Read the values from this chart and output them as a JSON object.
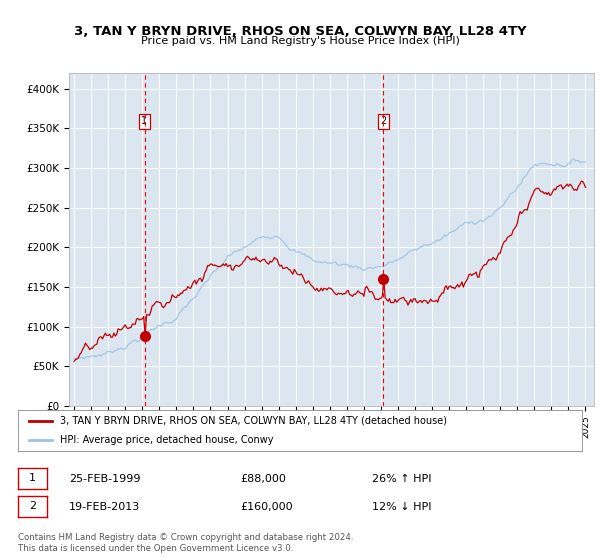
{
  "title": "3, TAN Y BRYN DRIVE, RHOS ON SEA, COLWYN BAY, LL28 4TY",
  "subtitle": "Price paid vs. HM Land Registry's House Price Index (HPI)",
  "ylabel_ticks": [
    "£0",
    "£50K",
    "£100K",
    "£150K",
    "£200K",
    "£250K",
    "£300K",
    "£350K",
    "£400K"
  ],
  "ytick_values": [
    0,
    50000,
    100000,
    150000,
    200000,
    250000,
    300000,
    350000,
    400000
  ],
  "ylim": [
    0,
    420000
  ],
  "sale1_date": 1999.13,
  "sale1_price": 88000,
  "sale2_date": 2013.13,
  "sale2_price": 160000,
  "legend_line1": "3, TAN Y BRYN DRIVE, RHOS ON SEA, COLWYN BAY, LL28 4TY (detached house)",
  "legend_line2": "HPI: Average price, detached house, Conwy",
  "annotation1_date": "25-FEB-1999",
  "annotation1_price": "£88,000",
  "annotation1_hpi": "26% ↑ HPI",
  "annotation2_date": "19-FEB-2013",
  "annotation2_price": "£160,000",
  "annotation2_hpi": "12% ↓ HPI",
  "footer": "Contains HM Land Registry data © Crown copyright and database right 2024.\nThis data is licensed under the Open Government Licence v3.0.",
  "bg_color": "#dce6f1",
  "red_line_color": "#c00000",
  "blue_line_color": "#9dc3e6",
  "vline_color": "#ff0000"
}
